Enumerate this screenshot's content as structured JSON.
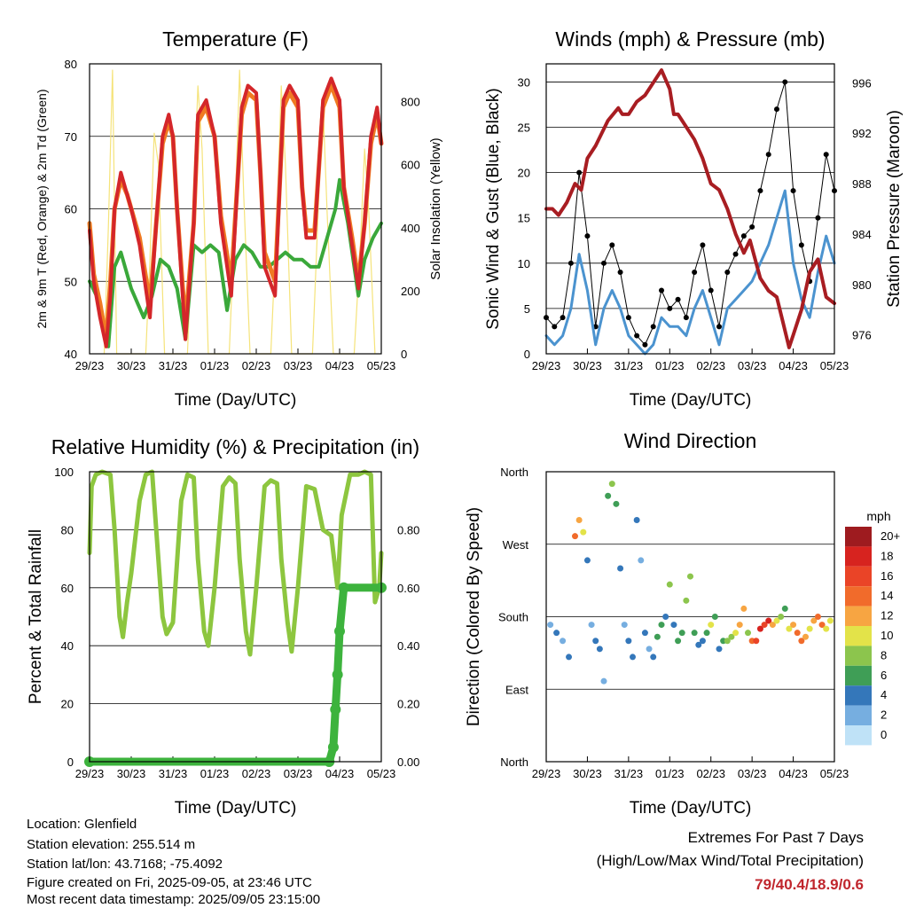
{
  "station": {
    "location": "Location: Glenfield",
    "elevation": "Station elevation: 255.514 m",
    "latlon": "Station lat/lon: 43.7168; -75.4092",
    "created": "Figure created on Fri, 2025-09-05, at 23:46 UTC",
    "recent": "Most recent data timestamp: 2025/09/05 23:15:00"
  },
  "extremes": {
    "title": "Extremes For Past 7 Days",
    "subtitle": "(High/Low/Max Wind/Total Precipitation)",
    "values": "79/40.4/18.9/0.6",
    "color": "#c0262d"
  },
  "colors": {
    "temp2m": "#d4262a",
    "temp9m": "#f07a22",
    "dew": "#3aa83a",
    "solar": "#f5e37a",
    "gust": "#000000",
    "wind": "#4b93cf",
    "pressure": "#a81d22",
    "rh": "#8dc63f",
    "precip": "#3db33d"
  },
  "chart_data": [
    {
      "type": "line",
      "title": "Temperature (F)",
      "xlabel": "Time (Day/UTC)",
      "ylabel": "2m & 9m T (Red, Orange) & 2m Td (Green)",
      "y2label": "Solar Insolation (Yellow)",
      "xticks": [
        "29/23",
        "30/23",
        "31/23",
        "01/23",
        "02/23",
        "03/23",
        "04/23",
        "05/23"
      ],
      "xlim": [
        0,
        7
      ],
      "ylim": [
        40,
        80
      ],
      "yticks": [
        40,
        50,
        60,
        70,
        80
      ],
      "y2lim": [
        0,
        920
      ],
      "y2ticks": [
        0,
        200,
        400,
        600,
        800
      ],
      "grid": "horizontal",
      "series": [
        {
          "x": [
            0,
            0.1,
            0.25,
            0.4,
            0.5,
            0.6,
            0.75,
            0.9,
            1.0,
            1.2,
            1.45,
            1.6,
            1.75,
            1.9,
            2.0,
            2.1,
            2.3,
            2.5,
            2.6,
            2.8,
            3.0,
            3.15,
            3.4,
            3.65,
            3.8,
            4.0,
            4.1,
            4.2,
            4.45,
            4.65,
            4.8,
            5.0,
            5.1,
            5.2,
            5.4,
            5.6,
            5.8,
            6.0,
            6.1,
            6.3,
            6.45,
            6.6,
            6.75,
            6.9,
            7.0
          ],
          "y": [
            57,
            50,
            45,
            41,
            48,
            60,
            65,
            62,
            60,
            55,
            45,
            58,
            70,
            73,
            70,
            60,
            42,
            58,
            73,
            75,
            70,
            58,
            48,
            74,
            77,
            76,
            65,
            52,
            48,
            75,
            77,
            75,
            63,
            56,
            56,
            75,
            78,
            75,
            63,
            55,
            49,
            58,
            70,
            74,
            69
          ]
        },
        {
          "x": [
            0,
            0.1,
            0.25,
            0.4,
            0.5,
            0.6,
            0.75,
            0.9,
            1.0,
            1.2,
            1.45,
            1.6,
            1.75,
            1.9,
            2.0,
            2.1,
            2.3,
            2.5,
            2.6,
            2.8,
            3.0,
            3.15,
            3.4,
            3.65,
            3.8,
            4.0,
            4.1,
            4.2,
            4.45,
            4.65,
            4.8,
            5.0,
            5.1,
            5.2,
            5.4,
            5.6,
            5.8,
            6.0,
            6.1,
            6.3,
            6.45,
            6.6,
            6.75,
            6.9,
            7.0
          ],
          "y": [
            58,
            51,
            47,
            42,
            50,
            60,
            64,
            62,
            60,
            56,
            47,
            58,
            69,
            72,
            70,
            60,
            44,
            58,
            72,
            74,
            70,
            59,
            50,
            73,
            76,
            75,
            65,
            54,
            50,
            74,
            76,
            74,
            63,
            57,
            57,
            74,
            77,
            74,
            63,
            56,
            50,
            58,
            69,
            73,
            69
          ]
        },
        {
          "x": [
            0,
            0.25,
            0.45,
            0.6,
            0.75,
            0.9,
            1.0,
            1.3,
            1.5,
            1.7,
            1.9,
            2.1,
            2.3,
            2.5,
            2.7,
            2.9,
            3.1,
            3.3,
            3.5,
            3.7,
            3.9,
            4.1,
            4.3,
            4.5,
            4.7,
            4.9,
            5.1,
            5.3,
            5.5,
            5.7,
            5.9,
            6.0,
            6.2,
            6.45,
            6.6,
            6.8,
            7.0
          ],
          "y": [
            50,
            47,
            41,
            52,
            54,
            51,
            49,
            45,
            48,
            53,
            52,
            49,
            42,
            55,
            54,
            55,
            54,
            46,
            53,
            55,
            54,
            52,
            52,
            53,
            54,
            53,
            53,
            52,
            52,
            56,
            60,
            64,
            58,
            48,
            53,
            56,
            58
          ]
        },
        {
          "x": [
            0.35,
            0.45,
            0.55,
            0.65,
            1.35,
            1.45,
            1.55,
            1.65,
            1.8,
            2.35,
            2.5,
            2.6,
            2.7,
            2.85,
            3.35,
            3.5,
            3.6,
            3.7,
            3.85,
            4.35,
            4.5,
            4.6,
            4.7,
            4.85,
            5.35,
            5.5,
            5.6,
            5.7,
            5.85,
            6.35,
            6.5,
            6.6,
            6.7,
            6.85
          ],
          "y": [
            0,
            400,
            900,
            0,
            0,
            300,
            700,
            600,
            0,
            0,
            500,
            850,
            650,
            0,
            0,
            480,
            900,
            500,
            0,
            0,
            450,
            850,
            600,
            0,
            0,
            500,
            800,
            450,
            0,
            0,
            350,
            650,
            450,
            0
          ]
        }
      ]
    },
    {
      "type": "line",
      "title": "Winds (mph) & Pressure (mb)",
      "xlabel": "Time (Day/UTC)",
      "ylabel": "Sonic Wind & Gust (Blue, Black)",
      "y2label": "Station Pressure (Maroon)",
      "xticks": [
        "29/23",
        "30/23",
        "31/23",
        "01/23",
        "02/23",
        "03/23",
        "04/23",
        "05/23"
      ],
      "xlim": [
        0,
        7
      ],
      "ylim": [
        0,
        32
      ],
      "yticks": [
        0,
        5,
        10,
        15,
        20,
        25,
        30
      ],
      "y2lim": [
        974.5,
        997.5
      ],
      "y2ticks": [
        976,
        980,
        984,
        988,
        992,
        996
      ],
      "grid": "horizontal",
      "series": [
        {
          "x": [
            0,
            0.2,
            0.4,
            0.6,
            0.8,
            1.0,
            1.2,
            1.4,
            1.6,
            1.8,
            2.0,
            2.2,
            2.4,
            2.6,
            2.8,
            3.0,
            3.2,
            3.4,
            3.6,
            3.8,
            4.0,
            4.2,
            4.4,
            4.6,
            4.8,
            5.0,
            5.2,
            5.4,
            5.6,
            5.8,
            6.0,
            6.2,
            6.4,
            6.6,
            6.8,
            7.0
          ],
          "y": [
            4,
            3,
            4,
            10,
            20,
            13,
            3,
            10,
            12,
            9,
            4,
            2,
            1,
            3,
            7,
            5,
            6,
            4,
            9,
            12,
            7,
            3,
            9,
            11,
            13,
            14,
            18,
            22,
            27,
            30,
            18,
            12,
            8,
            15,
            22,
            18
          ]
        },
        {
          "x": [
            0,
            0.2,
            0.4,
            0.6,
            0.8,
            1.0,
            1.2,
            1.4,
            1.6,
            1.8,
            2.0,
            2.2,
            2.4,
            2.6,
            2.8,
            3.0,
            3.2,
            3.4,
            3.6,
            3.8,
            4.0,
            4.2,
            4.4,
            4.6,
            4.8,
            5.0,
            5.2,
            5.4,
            5.6,
            5.8,
            6.0,
            6.2,
            6.4,
            6.6,
            6.8,
            7.0
          ],
          "y": [
            2,
            1,
            2,
            5,
            11,
            7,
            1,
            5,
            7,
            5,
            2,
            1,
            0,
            1,
            4,
            3,
            3,
            2,
            5,
            7,
            4,
            1,
            5,
            6,
            7,
            8,
            10,
            12,
            15,
            18,
            10,
            6,
            4,
            9,
            13,
            10
          ]
        },
        {
          "x": [
            0,
            0.15,
            0.3,
            0.5,
            0.7,
            0.85,
            1.0,
            1.2,
            1.5,
            1.75,
            1.85,
            2.0,
            2.2,
            2.4,
            2.6,
            2.8,
            3.0,
            3.1,
            3.2,
            3.4,
            3.6,
            3.8,
            4.0,
            4.2,
            4.4,
            4.6,
            4.8,
            4.95,
            5.2,
            5.4,
            5.6,
            5.75,
            5.9,
            6.0,
            6.2,
            6.4,
            6.6,
            6.8,
            7.0
          ],
          "y": [
            986,
            986,
            985.5,
            986.5,
            988,
            987.5,
            990,
            991,
            993,
            994,
            993.5,
            993.5,
            994.5,
            995,
            996,
            997,
            995.5,
            993.5,
            993.5,
            992.5,
            991.5,
            990,
            988,
            987.5,
            986,
            984,
            982.5,
            983.5,
            980.5,
            979.5,
            979,
            977,
            975,
            976,
            978,
            981,
            982,
            979,
            978.5
          ]
        }
      ]
    },
    {
      "type": "line",
      "title": "Relative Humidity (%) & Precipitation (in)",
      "xlabel": "Time (Day/UTC)",
      "ylabel": "Percent & Total Rainfall",
      "xticks": [
        "29/23",
        "30/23",
        "31/23",
        "01/23",
        "02/23",
        "03/23",
        "04/23",
        "05/23"
      ],
      "xlim": [
        0,
        7
      ],
      "ylim": [
        0,
        100
      ],
      "yticks": [
        0,
        20,
        40,
        60,
        80,
        100
      ],
      "y2lim": [
        0,
        1.0
      ],
      "y2ticks": [
        "0.00",
        "0.20",
        "0.40",
        "0.60",
        "0.80"
      ],
      "grid": "horizontal",
      "series": [
        {
          "x": [
            0,
            0.05,
            0.15,
            0.3,
            0.5,
            0.6,
            0.72,
            0.8,
            0.9,
            1.0,
            1.2,
            1.35,
            1.5,
            1.6,
            1.75,
            1.85,
            2.0,
            2.2,
            2.35,
            2.5,
            2.6,
            2.75,
            2.85,
            3.0,
            3.2,
            3.35,
            3.5,
            3.6,
            3.75,
            3.85,
            4.0,
            4.2,
            4.35,
            4.5,
            4.6,
            4.75,
            4.85,
            5.0,
            5.2,
            5.4,
            5.6,
            5.8,
            5.95,
            6.05,
            6.25,
            6.45,
            6.6,
            6.75,
            6.85,
            6.95,
            7.0
          ],
          "y": [
            72,
            95,
            99,
            100,
            99,
            80,
            50,
            43,
            55,
            65,
            90,
            99,
            100,
            80,
            50,
            44,
            48,
            90,
            99,
            98,
            70,
            45,
            40,
            60,
            95,
            98,
            96,
            70,
            45,
            37,
            60,
            95,
            97,
            96,
            70,
            48,
            38,
            60,
            95,
            94,
            80,
            78,
            60,
            85,
            99,
            99,
            100,
            99,
            55,
            60,
            72
          ]
        },
        {
          "x": [
            0,
            5.75,
            5.85,
            5.9,
            5.95,
            6.0,
            6.1,
            7.0
          ],
          "y": [
            0,
            0,
            0.05,
            0.18,
            0.3,
            0.45,
            0.6,
            0.6
          ]
        }
      ]
    },
    {
      "type": "scatter",
      "title": "Wind Direction",
      "xlabel": "Time (Day/UTC)",
      "ylabel": "Direction (Colored By Speed)",
      "xticks": [
        "29/23",
        "30/23",
        "31/23",
        "01/23",
        "02/23",
        "03/23",
        "04/23",
        "05/23"
      ],
      "yticks": [
        "North",
        "East",
        "South",
        "West",
        "North"
      ],
      "xlim": [
        0,
        7
      ],
      "ylim": [
        0,
        360
      ],
      "colorbar": {
        "unit": "mph",
        "labels": [
          "20+",
          "18",
          "16",
          "14",
          "12",
          "10",
          "8",
          "6",
          "4",
          "2",
          "0"
        ],
        "colors": [
          "#9e1b1f",
          "#d7231f",
          "#ea4427",
          "#f16b2b",
          "#f7a542",
          "#e3e349",
          "#8cc54d",
          "#3f9e56",
          "#3477ba",
          "#76aee0",
          "#bfe2f7"
        ]
      },
      "series": [
        {
          "x": [
            0.1,
            0.25,
            0.4,
            0.55,
            0.7,
            0.8,
            0.9,
            1.0,
            1.1,
            1.2,
            1.3,
            1.4,
            1.5,
            1.6,
            1.7,
            1.8,
            1.9,
            2.0,
            2.1,
            2.2,
            2.3,
            2.4,
            2.5,
            2.6,
            2.7,
            2.8,
            2.9,
            3.0,
            3.1,
            3.2,
            3.3,
            3.4,
            3.5,
            3.6,
            3.7,
            3.8,
            3.9,
            4.0,
            4.1,
            4.2,
            4.3,
            4.4,
            4.5,
            4.6,
            4.7,
            4.8,
            4.9,
            5.0,
            5.1,
            5.2,
            5.3,
            5.4,
            5.5,
            5.6,
            5.7,
            5.8,
            5.9,
            6.0,
            6.1,
            6.2,
            6.3,
            6.4,
            6.5,
            6.6,
            6.7,
            6.8,
            6.9
          ],
          "y": [
            170,
            160,
            150,
            130,
            280,
            300,
            285,
            250,
            170,
            150,
            140,
            100,
            330,
            345,
            320,
            240,
            170,
            150,
            130,
            300,
            250,
            160,
            140,
            130,
            155,
            170,
            180,
            220,
            170,
            150,
            160,
            200,
            230,
            160,
            145,
            150,
            160,
            170,
            180,
            140,
            150,
            150,
            155,
            160,
            170,
            190,
            160,
            150,
            150,
            165,
            170,
            175,
            170,
            175,
            180,
            190,
            165,
            170,
            160,
            150,
            155,
            165,
            175,
            180,
            170,
            165,
            175
          ],
          "speed": [
            2,
            3,
            2,
            4,
            13,
            12,
            9,
            4,
            2,
            3,
            4,
            2,
            6,
            8,
            5,
            4,
            2,
            3,
            3,
            3,
            2,
            3,
            2,
            4,
            5,
            6,
            4,
            7,
            4,
            6,
            5,
            8,
            7,
            5,
            3,
            4,
            6,
            9,
            5,
            4,
            6,
            7,
            8,
            10,
            12,
            11,
            7,
            13,
            15,
            17,
            16,
            18,
            12,
            9,
            8,
            6,
            10,
            12,
            13,
            14,
            11,
            9,
            12,
            14,
            13,
            10,
            9
          ]
        }
      ]
    }
  ]
}
